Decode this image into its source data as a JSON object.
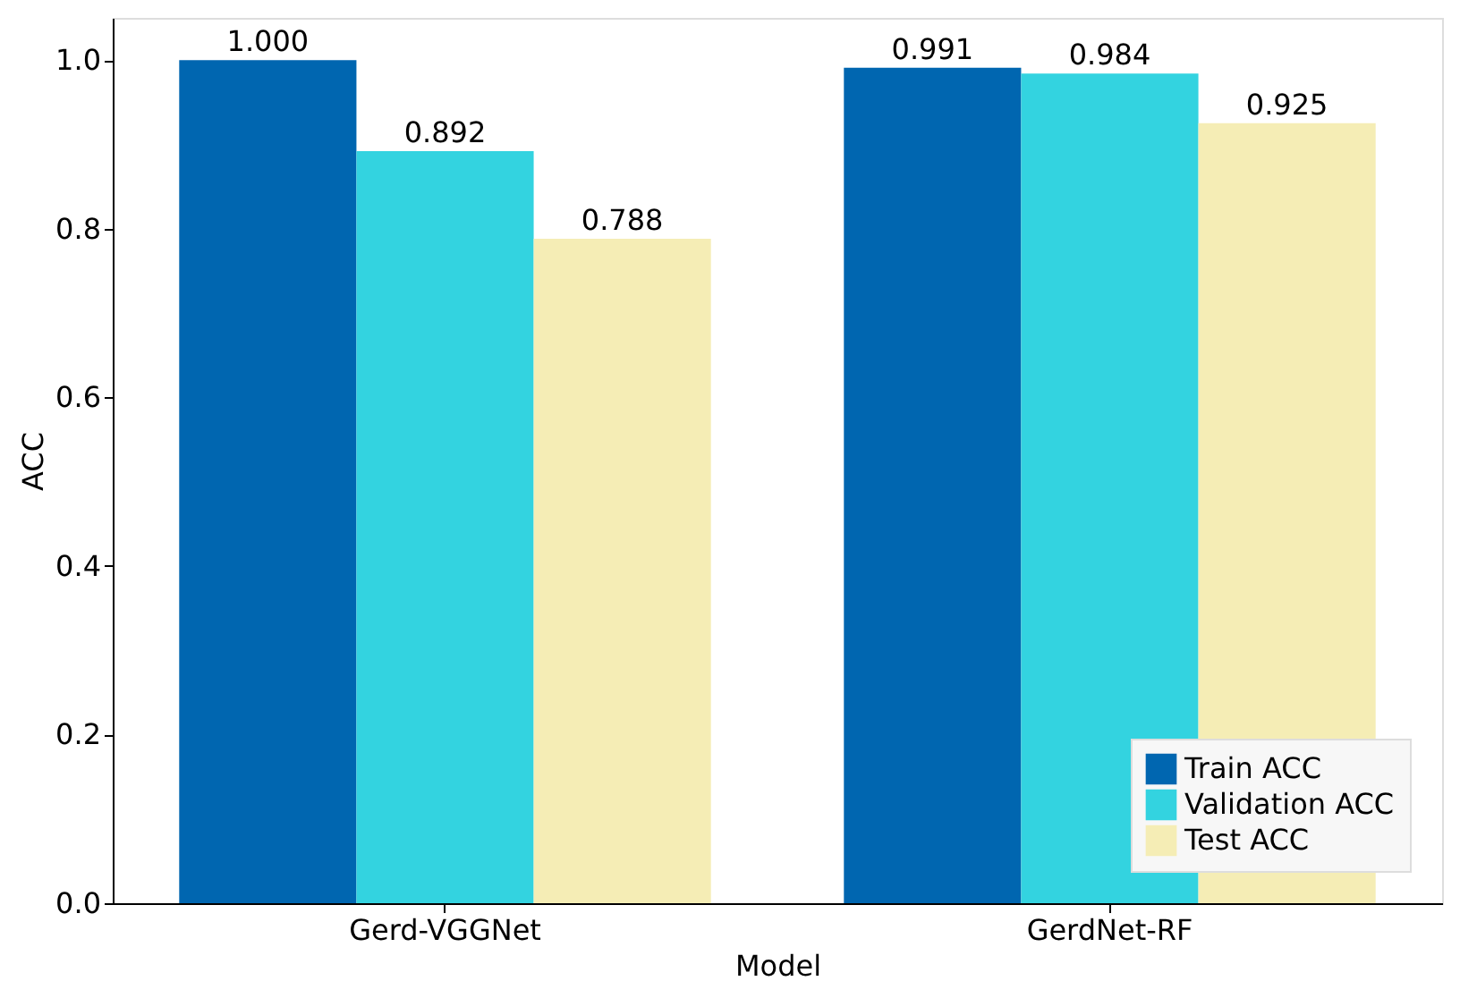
{
  "chart_data": {
    "type": "bar",
    "xlabel": "Model",
    "ylabel": "ACC",
    "categories": [
      "Gerd-VGGNet",
      "GerdNet-RF"
    ],
    "series": [
      {
        "name": "Train ACC",
        "color": "#0066b0",
        "values": [
          1.0,
          0.991
        ],
        "value_labels": [
          "1.000",
          "0.991"
        ]
      },
      {
        "name": "Validation ACC",
        "color": "#33d3e0",
        "values": [
          0.892,
          0.984
        ],
        "value_labels": [
          "0.892",
          "0.984"
        ]
      },
      {
        "name": "Test ACC",
        "color": "#f5edb5",
        "values": [
          0.788,
          0.925
        ],
        "value_labels": [
          "0.788",
          "0.925"
        ]
      }
    ],
    "ylim": [
      0,
      1.05
    ],
    "yticks": [
      {
        "value": 0,
        "label": "0.0"
      },
      {
        "value": 0.2,
        "label": "0.2"
      },
      {
        "value": 0.4,
        "label": "0.4"
      },
      {
        "value": 0.6,
        "label": "0.6"
      },
      {
        "value": 0.8,
        "label": "0.8"
      },
      {
        "value": 1.0,
        "label": "1.0"
      }
    ],
    "grid": false,
    "legend": "bottom right"
  }
}
